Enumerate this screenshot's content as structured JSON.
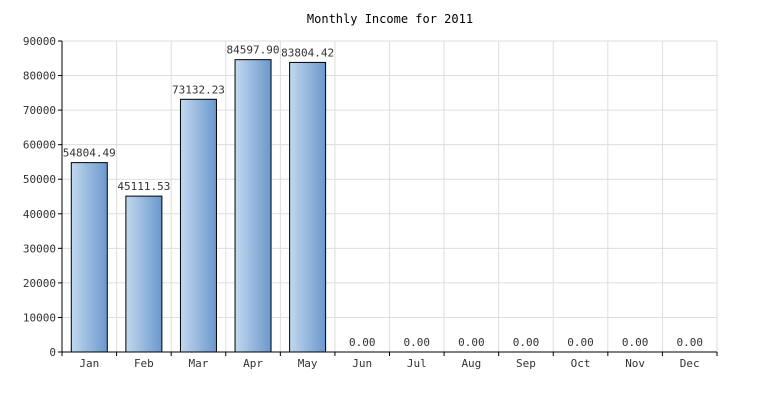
{
  "chart_data": {
    "type": "bar",
    "title": "Monthly Income for 2011",
    "xlabel": "",
    "ylabel": "",
    "categories": [
      "Jan",
      "Feb",
      "Mar",
      "Apr",
      "May",
      "Jun",
      "Jul",
      "Aug",
      "Sep",
      "Oct",
      "Nov",
      "Dec"
    ],
    "values": [
      54804.49,
      45111.53,
      73132.23,
      84597.9,
      83804.42,
      0,
      0,
      0,
      0,
      0,
      0,
      0
    ],
    "value_labels": [
      "54804.49",
      "45111.53",
      "73132.23",
      "84597.90",
      "83804.42",
      "0.00",
      "0.00",
      "0.00",
      "0.00",
      "0.00",
      "0.00",
      "0.00"
    ],
    "ylim": [
      0,
      90000
    ],
    "yticks": [
      0,
      10000,
      20000,
      30000,
      40000,
      50000,
      60000,
      70000,
      80000,
      90000
    ],
    "ytick_labels": [
      "0",
      "10000",
      "20000",
      "30000",
      "40000",
      "50000",
      "60000",
      "70000",
      "80000",
      "90000"
    ],
    "grid": true,
    "legend": "none",
    "colors": {
      "bar_light": "#c2d8f0",
      "bar_dark": "#6a98cc",
      "bar_stroke": "#000000",
      "grid": "#dddddd",
      "axis": "#000000",
      "text": "#333333"
    }
  }
}
